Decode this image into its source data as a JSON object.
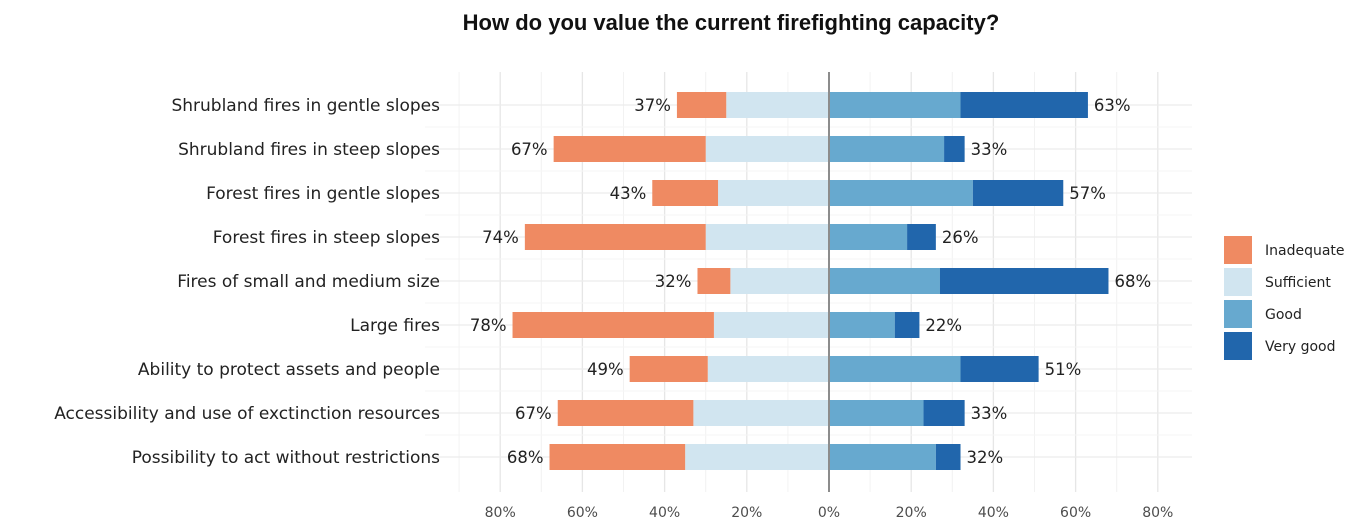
{
  "chart_data": {
    "type": "bar",
    "orientation": "horizontal-diverging",
    "title": "How do you value the current firefighting capacity?",
    "xlabel": "",
    "ylabel": "",
    "xlim": [
      -80,
      80
    ],
    "x_ticks": [
      -80,
      -60,
      -40,
      -20,
      0,
      20,
      40,
      60,
      80
    ],
    "x_tick_labels": [
      "80%",
      "60%",
      "40%",
      "20%",
      "0%",
      "20%",
      "40%",
      "60%",
      "80%"
    ],
    "grid": true,
    "legend_position": "right",
    "categories": [
      "Shrubland fires in gentle slopes",
      "Shrubland fires in steep slopes",
      "Forest fires in gentle slopes",
      "Forest fires in steep slopes",
      "Fires of small and medium size",
      "Large fires",
      "Ability to protect assets and people",
      "Accessibility and use of exctinction resources",
      "Possibility to act without restrictions"
    ],
    "series": [
      {
        "name": "Inadequate",
        "color": "#ef8a62",
        "side": "negative",
        "values": [
          12,
          37,
          16,
          44,
          8,
          49,
          19,
          33,
          33
        ]
      },
      {
        "name": "Sufficient",
        "color": "#d1e5f0",
        "side": "split",
        "values": [
          50,
          60,
          54,
          60,
          48,
          56,
          59,
          66,
          70
        ]
      },
      {
        "name": "Good",
        "color": "#67a9cf",
        "side": "positive",
        "values": [
          32,
          28,
          35,
          19,
          27,
          16,
          32,
          23,
          26
        ]
      },
      {
        "name": "Very good",
        "color": "#2166ac",
        "side": "positive",
        "values": [
          31,
          5,
          22,
          7,
          41,
          6,
          19,
          10,
          6
        ]
      }
    ],
    "left_labels": [
      "37%",
      "67%",
      "43%",
      "74%",
      "32%",
      "78%",
      "49%",
      "67%",
      "68%"
    ],
    "right_labels": [
      "63%",
      "33%",
      "57%",
      "26%",
      "68%",
      "22%",
      "51%",
      "33%",
      "32%"
    ]
  }
}
